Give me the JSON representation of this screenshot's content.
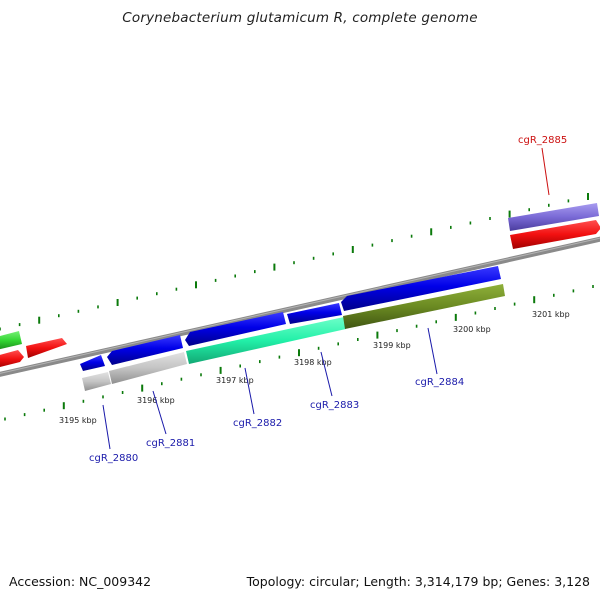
{
  "header": {
    "title": "Corynebacterium glutamicum R, complete genome"
  },
  "footer": {
    "accession": "Accession: NC_009342",
    "summary": "Topology: circular; Length: 3,314,179 bp; Genes: 3,128"
  },
  "colors": {
    "backbone": "#8a8a8a",
    "ticks": "#0b7a0b",
    "gene_blue": "#0505e6",
    "gene_gray": "#c4c4c4",
    "gene_aqua": "#22f0a8",
    "gene_olive": "#6b8a22",
    "gene_red": "#f21010",
    "gene_green": "#33d633",
    "gene_violet": "#7a6ad6",
    "label_blue": "#1a1aaa",
    "label_red": "#cc1111"
  },
  "scale_labels": [
    "3195 kbp",
    "3196 kbp",
    "3197 kbp",
    "3198 kbp",
    "3199 kbp",
    "3200 kbp",
    "3201 kbp"
  ],
  "gene_labels": [
    {
      "id": "cgR_2880",
      "color": "blue"
    },
    {
      "id": "cgR_2881",
      "color": "blue"
    },
    {
      "id": "cgR_2882",
      "color": "blue"
    },
    {
      "id": "cgR_2883",
      "color": "blue"
    },
    {
      "id": "cgR_2884",
      "color": "blue"
    },
    {
      "id": "cgR_2885",
      "color": "red"
    }
  ]
}
